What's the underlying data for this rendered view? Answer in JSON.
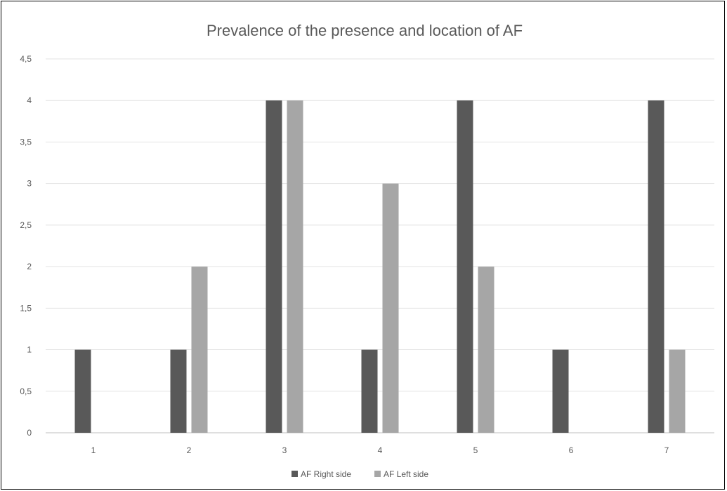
{
  "chart_data": {
    "type": "bar",
    "title": "Prevalence of the presence and location of AF",
    "xlabel": "",
    "ylabel": "",
    "categories": [
      "1",
      "2",
      "3",
      "4",
      "5",
      "6",
      "7"
    ],
    "series": [
      {
        "name": "AF Right side",
        "color": "#595959",
        "values": [
          1,
          1,
          4,
          1,
          4,
          1,
          4
        ]
      },
      {
        "name": "AF Left side",
        "color": "#a6a6a6",
        "values": [
          0,
          2,
          4,
          3,
          2,
          0,
          1
        ]
      }
    ],
    "ylim": [
      0,
      4.5
    ],
    "yticks": [
      "0",
      "0,5",
      "1",
      "1,5",
      "2",
      "2,5",
      "3",
      "3,5",
      "4",
      "4,5"
    ],
    "grid": true,
    "legend_position": "bottom"
  }
}
